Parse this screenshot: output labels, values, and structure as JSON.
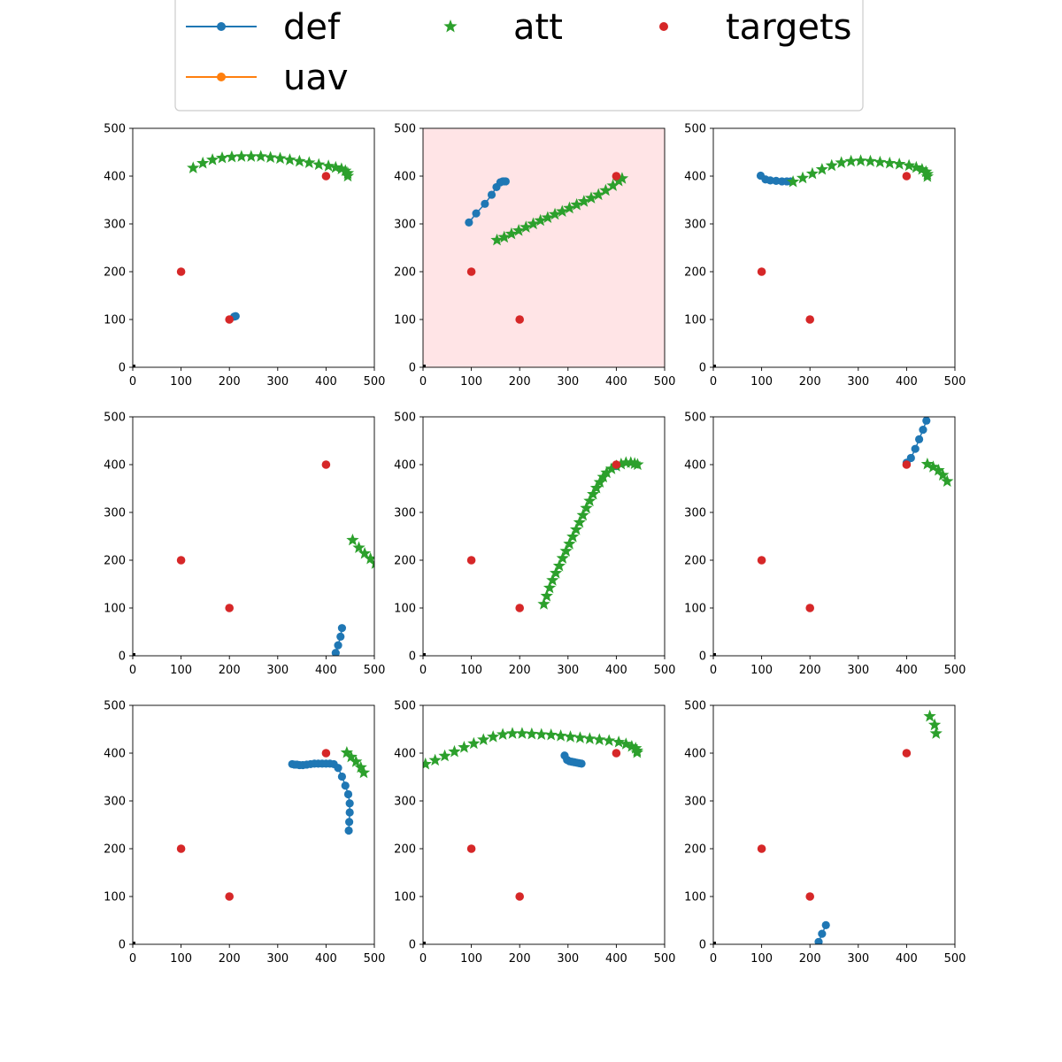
{
  "colors": {
    "def": "#1f77b4",
    "uav": "#ff7f0e",
    "att": "#2ca02c",
    "targets": "#d62728",
    "origin": "#000000",
    "highlight": "#ffe4e6"
  },
  "legend": {
    "placement": "top-center",
    "entries": [
      {
        "label": "def",
        "marker": "line-dot"
      },
      {
        "label": "uav",
        "marker": "line-dot"
      },
      {
        "label": "att",
        "marker": "star"
      },
      {
        "label": "targets",
        "marker": "dot"
      }
    ]
  },
  "chart_data": [
    {
      "type": "scatter",
      "highlighted": false,
      "xlim": [
        0,
        500
      ],
      "ylim": [
        0,
        500
      ],
      "xticks": [
        "0",
        "100",
        "200",
        "300",
        "400",
        "500"
      ],
      "yticks": [
        "0",
        "100",
        "200",
        "300",
        "400",
        "500"
      ],
      "targets": [
        [
          100,
          200
        ],
        [
          200,
          100
        ],
        [
          400,
          400
        ]
      ],
      "def": [
        [
          210,
          106
        ],
        [
          213,
          107
        ]
      ],
      "uav": [],
      "att": [
        [
          125,
          417
        ],
        [
          145,
          427
        ],
        [
          165,
          434
        ],
        [
          185,
          438
        ],
        [
          205,
          440
        ],
        [
          225,
          441
        ],
        [
          245,
          441
        ],
        [
          265,
          441
        ],
        [
          285,
          439
        ],
        [
          305,
          437
        ],
        [
          325,
          434
        ],
        [
          345,
          431
        ],
        [
          365,
          428
        ],
        [
          385,
          424
        ],
        [
          405,
          421
        ],
        [
          420,
          418
        ],
        [
          432,
          415
        ],
        [
          440,
          411
        ],
        [
          445,
          406
        ],
        [
          445,
          400
        ]
      ]
    },
    {
      "type": "scatter",
      "highlighted": true,
      "xlim": [
        0,
        500
      ],
      "ylim": [
        0,
        500
      ],
      "xticks": [
        "0",
        "100",
        "200",
        "300",
        "400",
        "500"
      ],
      "yticks": [
        "0",
        "100",
        "200",
        "300",
        "400",
        "500"
      ],
      "targets": [
        [
          100,
          200
        ],
        [
          200,
          100
        ],
        [
          400,
          400
        ]
      ],
      "def": [
        [
          95,
          303
        ],
        [
          110,
          322
        ],
        [
          128,
          342
        ],
        [
          142,
          361
        ],
        [
          152,
          377
        ],
        [
          160,
          387
        ],
        [
          165,
          389
        ],
        [
          168,
          389
        ],
        [
          171,
          389
        ]
      ],
      "uav": [],
      "att": [
        [
          153,
          266
        ],
        [
          168,
          272
        ],
        [
          183,
          279
        ],
        [
          198,
          286
        ],
        [
          213,
          293
        ],
        [
          228,
          300
        ],
        [
          243,
          307
        ],
        [
          258,
          313
        ],
        [
          273,
          320
        ],
        [
          288,
          326
        ],
        [
          303,
          333
        ],
        [
          318,
          340
        ],
        [
          333,
          347
        ],
        [
          348,
          354
        ],
        [
          363,
          361
        ],
        [
          378,
          370
        ],
        [
          393,
          380
        ],
        [
          405,
          390
        ],
        [
          412,
          395
        ]
      ]
    },
    {
      "type": "scatter",
      "highlighted": false,
      "xlim": [
        0,
        500
      ],
      "ylim": [
        0,
        500
      ],
      "xticks": [
        "0",
        "100",
        "200",
        "300",
        "400",
        "500"
      ],
      "yticks": [
        "0",
        "100",
        "200",
        "300",
        "400",
        "500"
      ],
      "targets": [
        [
          100,
          200
        ],
        [
          200,
          100
        ],
        [
          400,
          400
        ]
      ],
      "def": [
        [
          98,
          401
        ],
        [
          108,
          393
        ],
        [
          118,
          391
        ],
        [
          130,
          390
        ],
        [
          142,
          389
        ],
        [
          152,
          389
        ],
        [
          160,
          389
        ]
      ],
      "uav": [],
      "att": [
        [
          165,
          388
        ],
        [
          185,
          396
        ],
        [
          205,
          405
        ],
        [
          225,
          414
        ],
        [
          245,
          422
        ],
        [
          265,
          428
        ],
        [
          285,
          431
        ],
        [
          305,
          432
        ],
        [
          325,
          431
        ],
        [
          345,
          429
        ],
        [
          365,
          427
        ],
        [
          385,
          425
        ],
        [
          405,
          422
        ],
        [
          420,
          418
        ],
        [
          432,
          414
        ],
        [
          440,
          409
        ],
        [
          443,
          404
        ],
        [
          443,
          399
        ]
      ]
    },
    {
      "type": "scatter",
      "highlighted": false,
      "xlim": [
        0,
        500
      ],
      "ylim": [
        0,
        500
      ],
      "xticks": [
        "0",
        "100",
        "200",
        "300",
        "400",
        "500"
      ],
      "yticks": [
        "0",
        "100",
        "200",
        "300",
        "400",
        "500"
      ],
      "targets": [
        [
          100,
          200
        ],
        [
          200,
          100
        ],
        [
          400,
          400
        ]
      ],
      "def": [
        [
          433,
          58
        ],
        [
          430,
          40
        ],
        [
          425,
          22
        ],
        [
          420,
          6
        ]
      ],
      "uav": [],
      "att": [
        [
          455,
          242
        ],
        [
          468,
          226
        ],
        [
          480,
          214
        ],
        [
          492,
          203
        ],
        [
          502,
          193
        ]
      ]
    },
    {
      "type": "scatter",
      "highlighted": false,
      "xlim": [
        0,
        500
      ],
      "ylim": [
        0,
        500
      ],
      "xticks": [
        "0",
        "100",
        "200",
        "300",
        "400",
        "500"
      ],
      "yticks": [
        "0",
        "100",
        "200",
        "300",
        "400",
        "500"
      ],
      "targets": [
        [
          100,
          200
        ],
        [
          200,
          100
        ],
        [
          400,
          400
        ]
      ],
      "def": [
        [
          400,
          397
        ]
      ],
      "uav": [],
      "att": [
        [
          250,
          108
        ],
        [
          256,
          125
        ],
        [
          262,
          142
        ],
        [
          268,
          158
        ],
        [
          275,
          173
        ],
        [
          282,
          188
        ],
        [
          289,
          204
        ],
        [
          296,
          219
        ],
        [
          303,
          234
        ],
        [
          310,
          249
        ],
        [
          317,
          264
        ],
        [
          324,
          279
        ],
        [
          331,
          294
        ],
        [
          338,
          309
        ],
        [
          345,
          324
        ],
        [
          352,
          338
        ],
        [
          359,
          351
        ],
        [
          366,
          363
        ],
        [
          373,
          374
        ],
        [
          380,
          383
        ],
        [
          390,
          391
        ],
        [
          400,
          397
        ],
        [
          410,
          401
        ],
        [
          420,
          404
        ],
        [
          430,
          404
        ],
        [
          438,
          402
        ],
        [
          444,
          400
        ]
      ]
    },
    {
      "type": "scatter",
      "highlighted": false,
      "xlim": [
        0,
        500
      ],
      "ylim": [
        0,
        500
      ],
      "xticks": [
        "0",
        "100",
        "200",
        "300",
        "400",
        "500"
      ],
      "yticks": [
        "0",
        "100",
        "200",
        "300",
        "400",
        "500"
      ],
      "targets": [
        [
          100,
          200
        ],
        [
          200,
          100
        ],
        [
          400,
          400
        ]
      ],
      "def": [
        [
          441,
          492
        ],
        [
          434,
          473
        ],
        [
          426,
          453
        ],
        [
          418,
          433
        ],
        [
          409,
          414
        ],
        [
          400,
          404
        ]
      ],
      "uav": [],
      "att": [
        [
          443,
          401
        ],
        [
          455,
          395
        ],
        [
          466,
          388
        ],
        [
          475,
          378
        ],
        [
          484,
          365
        ]
      ]
    },
    {
      "type": "scatter",
      "highlighted": false,
      "xlim": [
        0,
        500
      ],
      "ylim": [
        0,
        500
      ],
      "xticks": [
        "0",
        "100",
        "200",
        "300",
        "400",
        "500"
      ],
      "yticks": [
        "0",
        "100",
        "200",
        "300",
        "400",
        "500"
      ],
      "targets": [
        [
          100,
          200
        ],
        [
          200,
          100
        ],
        [
          400,
          400
        ]
      ],
      "def": [
        [
          330,
          377
        ],
        [
          335,
          376
        ],
        [
          340,
          376
        ],
        [
          345,
          375
        ],
        [
          352,
          375
        ],
        [
          360,
          376
        ],
        [
          368,
          377
        ],
        [
          376,
          378
        ],
        [
          384,
          378
        ],
        [
          392,
          378
        ],
        [
          400,
          378
        ],
        [
          408,
          378
        ],
        [
          416,
          377
        ],
        [
          425,
          369
        ],
        [
          433,
          351
        ],
        [
          440,
          332
        ],
        [
          446,
          314
        ],
        [
          449,
          295
        ],
        [
          449,
          276
        ],
        [
          448,
          256
        ],
        [
          447,
          238
        ]
      ],
      "uav": [],
      "att": [
        [
          443,
          401
        ],
        [
          452,
          392
        ],
        [
          462,
          382
        ],
        [
          472,
          370
        ],
        [
          478,
          359
        ]
      ]
    },
    {
      "type": "scatter",
      "highlighted": false,
      "xlim": [
        0,
        500
      ],
      "ylim": [
        0,
        500
      ],
      "xticks": [
        "0",
        "100",
        "200",
        "300",
        "400",
        "500"
      ],
      "yticks": [
        "0",
        "100",
        "200",
        "300",
        "400",
        "500"
      ],
      "targets": [
        [
          100,
          200
        ],
        [
          200,
          100
        ],
        [
          400,
          400
        ]
      ],
      "def": [
        [
          293,
          395
        ],
        [
          298,
          386
        ],
        [
          303,
          383
        ],
        [
          308,
          382
        ],
        [
          313,
          381
        ],
        [
          318,
          380
        ],
        [
          323,
          379
        ],
        [
          328,
          378
        ]
      ],
      "uav": [],
      "att": [
        [
          5,
          377
        ],
        [
          25,
          385
        ],
        [
          45,
          394
        ],
        [
          65,
          403
        ],
        [
          85,
          412
        ],
        [
          105,
          420
        ],
        [
          125,
          428
        ],
        [
          145,
          434
        ],
        [
          165,
          439
        ],
        [
          185,
          441
        ],
        [
          205,
          441
        ],
        [
          225,
          440
        ],
        [
          245,
          439
        ],
        [
          265,
          438
        ],
        [
          285,
          436
        ],
        [
          305,
          434
        ],
        [
          325,
          432
        ],
        [
          345,
          430
        ],
        [
          365,
          428
        ],
        [
          385,
          426
        ],
        [
          405,
          423
        ],
        [
          420,
          419
        ],
        [
          432,
          414
        ],
        [
          440,
          410
        ],
        [
          443,
          405
        ],
        [
          443,
          401
        ]
      ]
    },
    {
      "type": "scatter",
      "highlighted": false,
      "xlim": [
        0,
        500
      ],
      "ylim": [
        0,
        500
      ],
      "xticks": [
        "0",
        "100",
        "200",
        "300",
        "400",
        "500"
      ],
      "yticks": [
        "0",
        "100",
        "200",
        "300",
        "400",
        "500"
      ],
      "targets": [
        [
          100,
          200
        ],
        [
          200,
          100
        ],
        [
          400,
          400
        ]
      ],
      "def": [
        [
          233,
          40
        ],
        [
          225,
          22
        ],
        [
          218,
          5
        ]
      ],
      "uav": [],
      "att": [
        [
          448,
          477
        ],
        [
          458,
          459
        ],
        [
          461,
          441
        ]
      ]
    }
  ]
}
